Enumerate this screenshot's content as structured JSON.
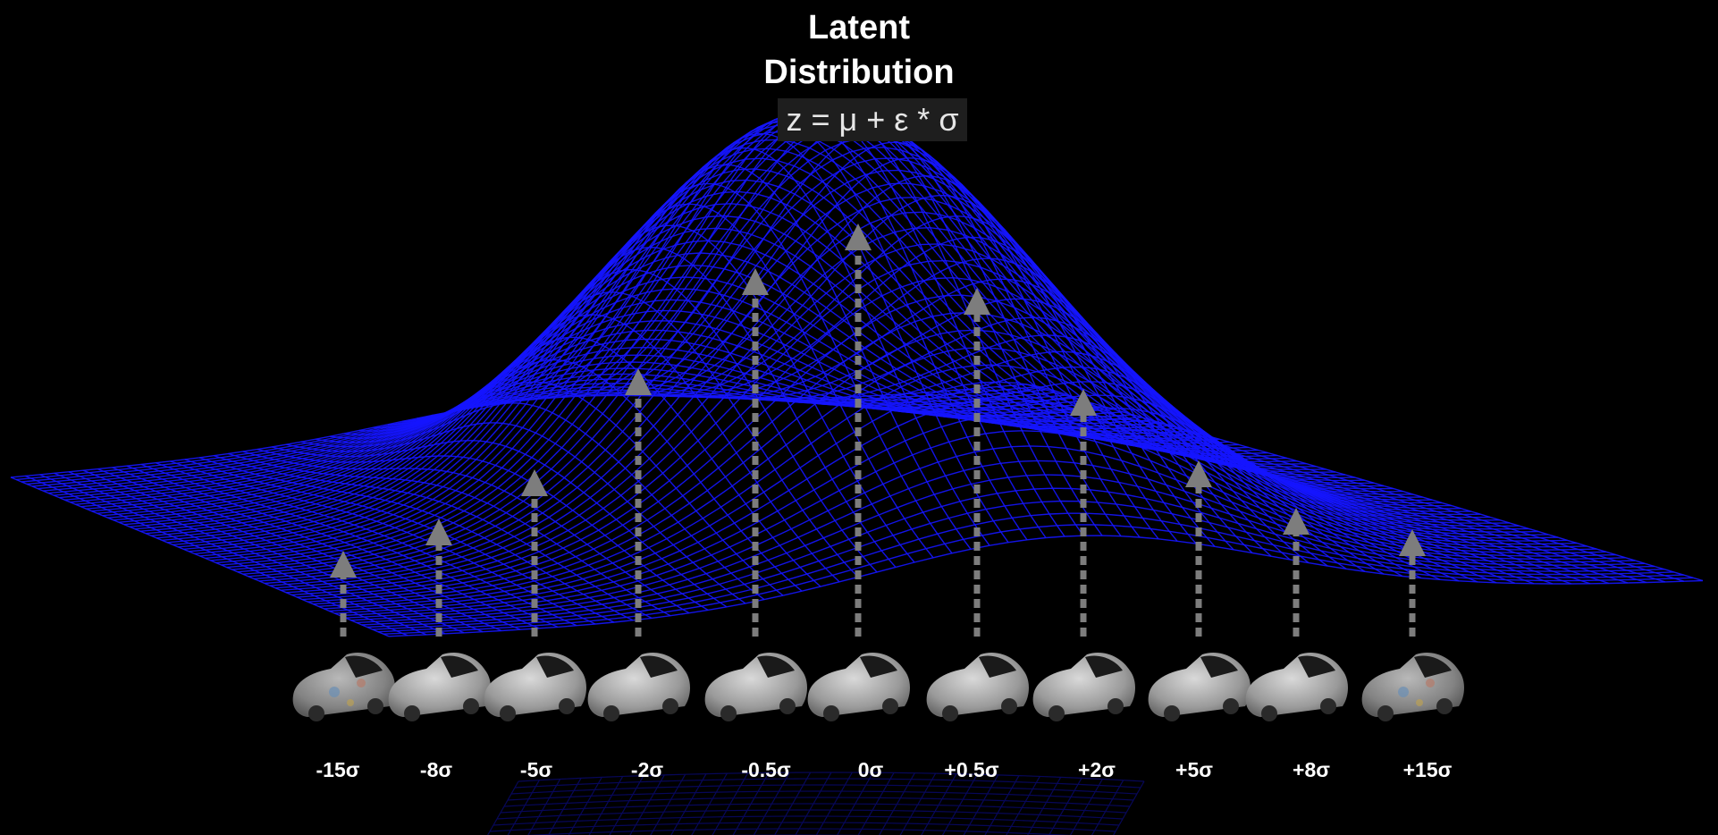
{
  "title": {
    "line1": "Latent",
    "line2": "Distribution"
  },
  "formula": "z = μ + ε * σ",
  "colors": {
    "mesh": "#1515ff",
    "arrow": "#7d7d7d",
    "car": "#b8b8b8",
    "text": "#ffffff"
  },
  "samples": [
    {
      "label": "-15σ",
      "offset": -15
    },
    {
      "label": "-8σ",
      "offset": -8
    },
    {
      "label": "-5σ",
      "offset": -5
    },
    {
      "label": "-2σ",
      "offset": -2
    },
    {
      "label": "-0.5σ",
      "offset": -0.5
    },
    {
      "label": "0σ",
      "offset": 0
    },
    {
      "label": "+0.5σ",
      "offset": 0.5
    },
    {
      "label": "+2σ",
      "offset": 2
    },
    {
      "label": "+5σ",
      "offset": 5
    },
    {
      "label": "+8σ",
      "offset": 8
    },
    {
      "label": "+15σ",
      "offset": 15
    }
  ]
}
